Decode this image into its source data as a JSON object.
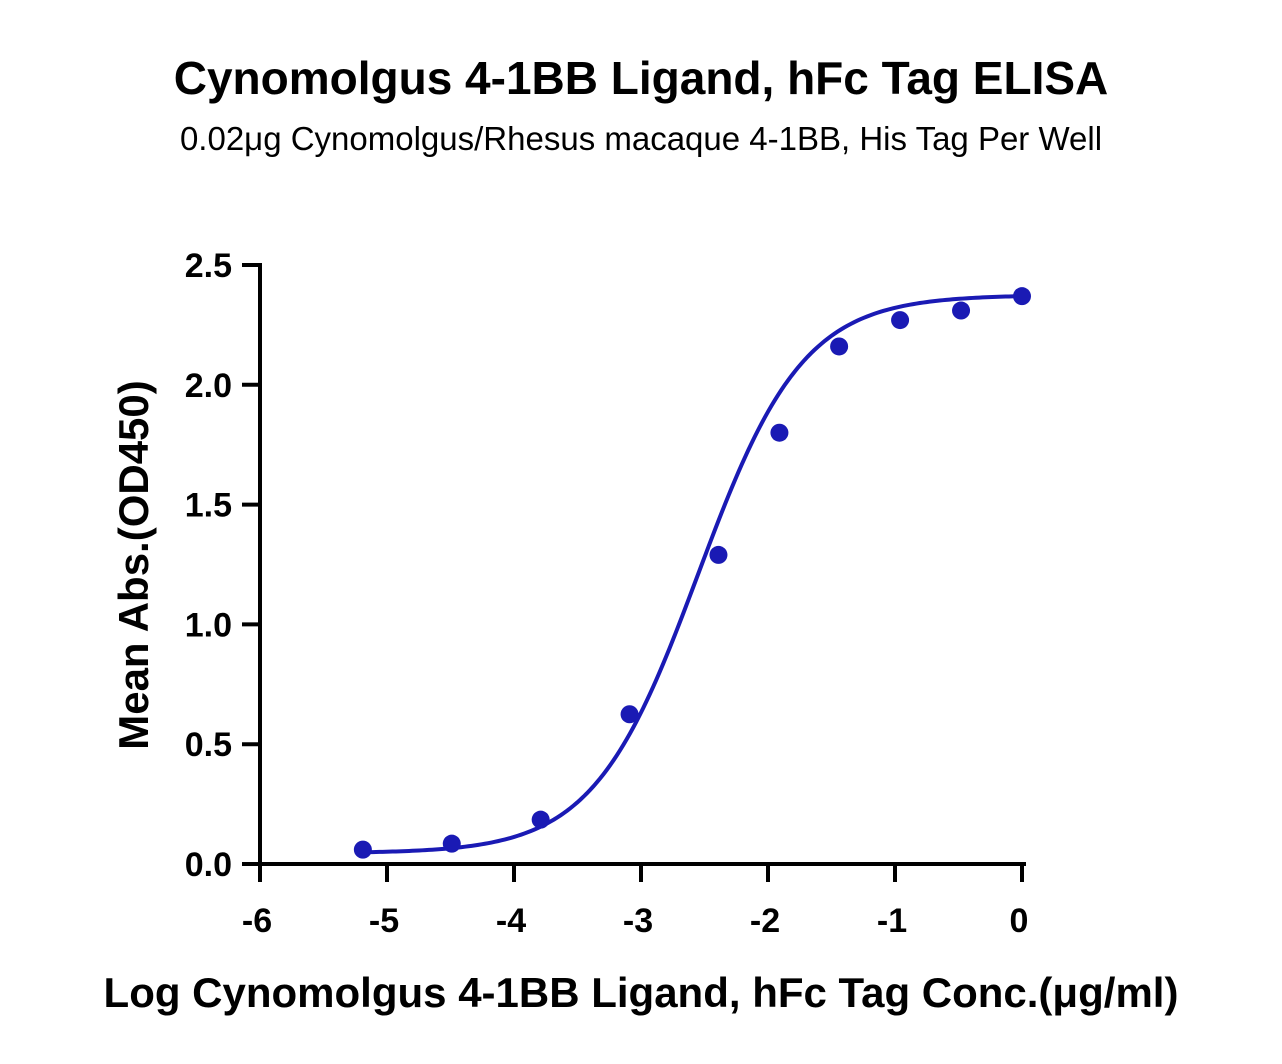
{
  "chart_data": {
    "type": "scatter",
    "title": "Cynomolgus 4-1BB Ligand, hFc Tag ELISA",
    "subtitle": "0.02μg Cynomolgus/Rhesus macaque 4-1BB, His Tag Per Well",
    "xlabel": "Log Cynomolgus 4-1BB Ligand, hFc Tag Conc.(μg/ml)",
    "ylabel": "Mean Abs.(OD450)",
    "xlim": [
      -6,
      0
    ],
    "ylim": [
      0,
      2.5
    ],
    "x_ticks": [
      -6,
      -5,
      -4,
      -3,
      -2,
      -1,
      0
    ],
    "x_tick_labels": [
      "-6",
      "-5",
      "-4",
      "-3",
      "-2",
      "-1",
      "0"
    ],
    "y_ticks": [
      0,
      0.5,
      1.0,
      1.5,
      2.0,
      2.5
    ],
    "y_tick_labels": [
      "0.0",
      "0.5",
      "1.0",
      "1.5",
      "2.0",
      "2.5"
    ],
    "grid": false,
    "color": "#1a1ab4",
    "series": [
      {
        "x": [
          -5.19,
          -4.49,
          -3.79,
          -3.09,
          -2.39,
          -1.91,
          -1.44,
          -0.96,
          -0.48,
          0.0
        ],
        "y": [
          0.06,
          0.085,
          0.185,
          0.625,
          1.29,
          1.8,
          2.16,
          2.27,
          2.31,
          2.37
        ]
      }
    ],
    "fit": {
      "model": "four-parameter logistic",
      "bottom": 0.045,
      "top": 2.375,
      "log_ec50": -2.55,
      "hill_slope": 1.05
    }
  }
}
